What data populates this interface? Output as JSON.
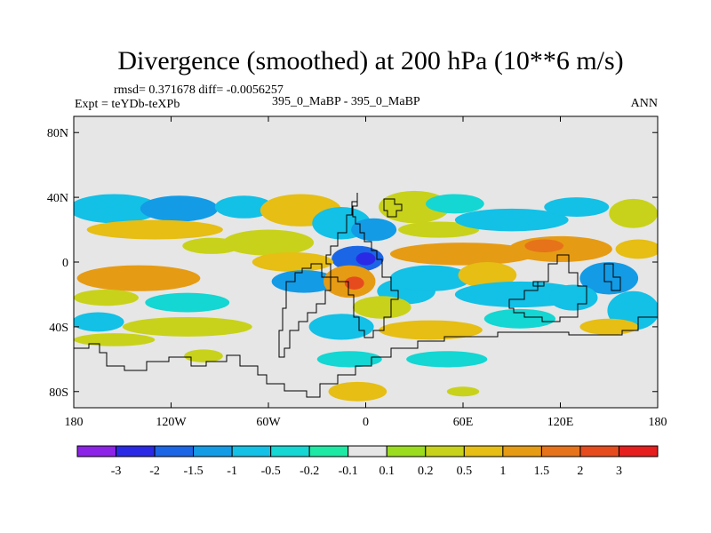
{
  "title": "Divergence (smoothed) at 200 hPa (10**6 m/s)",
  "stats": {
    "rmsd_label": "rmsd=",
    "rmsd": "0.371678",
    "diff_label": "diff=",
    "diff": "-0.0056257"
  },
  "experiment": "Expt = teYDb-teXPb",
  "experiments_compared": "395_0_MaBP - 395_0_MaBP",
  "season": "ANN",
  "chart_data": {
    "type": "heatmap",
    "title": "Divergence (smoothed) at 200 hPa (10**6 m/s)",
    "variable": "Divergence (smoothed)",
    "level": "200 hPa",
    "units": "10**6 m/s",
    "x_ticks": [
      "180",
      "120W",
      "60W",
      "0",
      "60E",
      "120E",
      "180"
    ],
    "x_values": [
      -180,
      -120,
      -60,
      0,
      60,
      120,
      180
    ],
    "y_ticks": [
      "80N",
      "40N",
      "0",
      "40S",
      "80S"
    ],
    "y_values": [
      80,
      40,
      0,
      -40,
      -80
    ],
    "xlim": [
      -180,
      180
    ],
    "ylim": [
      -90,
      90
    ],
    "colorbar": {
      "levels": [
        "-3",
        "-2",
        "-1.5",
        "-1",
        "-0.5",
        "-0.2",
        "-0.1",
        "0.1",
        "0.2",
        "0.5",
        "1",
        "1.5",
        "2",
        "3"
      ],
      "colors": [
        "#8c23e6",
        "#2a2ae6",
        "#1a66e6",
        "#139be6",
        "#13c0e6",
        "#14d6d3",
        "#1de9a5",
        "#e6e6e6",
        "#9bdc1e",
        "#c8d21a",
        "#e6be14",
        "#e69b14",
        "#e6731a",
        "#e64b1e",
        "#e61e1e"
      ]
    },
    "blobs": [
      {
        "lon": -155,
        "lat": 33,
        "rx": 28,
        "ry": 9,
        "level": "-0.5"
      },
      {
        "lon": -115,
        "lat": 33,
        "rx": 24,
        "ry": 8,
        "level": "-1"
      },
      {
        "lon": -75,
        "lat": 34,
        "rx": 18,
        "ry": 7,
        "level": "-0.5"
      },
      {
        "lon": -130,
        "lat": 20,
        "rx": 42,
        "ry": 6,
        "level": "0.5"
      },
      {
        "lon": -95,
        "lat": 10,
        "rx": 18,
        "ry": 5,
        "level": "0.2"
      },
      {
        "lon": -60,
        "lat": 12,
        "rx": 28,
        "ry": 8,
        "level": "0.2"
      },
      {
        "lon": -140,
        "lat": -10,
        "rx": 38,
        "ry": 8,
        "level": "1"
      },
      {
        "lon": -160,
        "lat": -22,
        "rx": 20,
        "ry": 5,
        "level": "0.2"
      },
      {
        "lon": -110,
        "lat": -25,
        "rx": 26,
        "ry": 6,
        "level": "-0.2"
      },
      {
        "lon": -165,
        "lat": -37,
        "rx": 16,
        "ry": 6,
        "level": "-0.5"
      },
      {
        "lon": -110,
        "lat": -40,
        "rx": 40,
        "ry": 6,
        "level": "0.2"
      },
      {
        "lon": -155,
        "lat": -48,
        "rx": 25,
        "ry": 4,
        "level": "0.2"
      },
      {
        "lon": -40,
        "lat": 32,
        "rx": 25,
        "ry": 10,
        "level": "0.5"
      },
      {
        "lon": -15,
        "lat": 24,
        "rx": 18,
        "ry": 10,
        "level": "-0.5"
      },
      {
        "lon": 5,
        "lat": 20,
        "rx": 14,
        "ry": 7,
        "level": "-1"
      },
      {
        "lon": -5,
        "lat": 2,
        "rx": 16,
        "ry": 8,
        "level": "-1.5"
      },
      {
        "lon": 0,
        "lat": 2,
        "rx": 6,
        "ry": 4,
        "level": "-2"
      },
      {
        "lon": -45,
        "lat": 0,
        "rx": 25,
        "ry": 6,
        "level": "0.5"
      },
      {
        "lon": -38,
        "lat": -12,
        "rx": 20,
        "ry": 7,
        "level": "-1"
      },
      {
        "lon": -10,
        "lat": -12,
        "rx": 16,
        "ry": 10,
        "level": "1"
      },
      {
        "lon": -7,
        "lat": -13,
        "rx": 6,
        "ry": 4,
        "level": "2"
      },
      {
        "lon": 25,
        "lat": -18,
        "rx": 18,
        "ry": 8,
        "level": "-0.5"
      },
      {
        "lon": 10,
        "lat": -28,
        "rx": 18,
        "ry": 7,
        "level": "0.2"
      },
      {
        "lon": -15,
        "lat": -40,
        "rx": 20,
        "ry": 8,
        "level": "-0.5"
      },
      {
        "lon": 30,
        "lat": 34,
        "rx": 22,
        "ry": 10,
        "level": "0.2"
      },
      {
        "lon": 55,
        "lat": 36,
        "rx": 18,
        "ry": 6,
        "level": "-0.2"
      },
      {
        "lon": 45,
        "lat": 20,
        "rx": 25,
        "ry": 5,
        "level": "0.2"
      },
      {
        "lon": 90,
        "lat": 26,
        "rx": 35,
        "ry": 7,
        "level": "-0.5"
      },
      {
        "lon": 130,
        "lat": 34,
        "rx": 20,
        "ry": 6,
        "level": "-0.5"
      },
      {
        "lon": 165,
        "lat": 30,
        "rx": 15,
        "ry": 9,
        "level": "0.2"
      },
      {
        "lon": 60,
        "lat": 5,
        "rx": 45,
        "ry": 7,
        "level": "1"
      },
      {
        "lon": 120,
        "lat": 8,
        "rx": 32,
        "ry": 8,
        "level": "1"
      },
      {
        "lon": 110,
        "lat": 10,
        "rx": 12,
        "ry": 4,
        "level": "1.5"
      },
      {
        "lon": 168,
        "lat": 8,
        "rx": 14,
        "ry": 6,
        "level": "0.5"
      },
      {
        "lon": 40,
        "lat": -10,
        "rx": 25,
        "ry": 8,
        "level": "-0.5"
      },
      {
        "lon": 75,
        "lat": -8,
        "rx": 18,
        "ry": 8,
        "level": "0.5"
      },
      {
        "lon": 95,
        "lat": -20,
        "rx": 40,
        "ry": 8,
        "level": "-0.5"
      },
      {
        "lon": 95,
        "lat": -35,
        "rx": 22,
        "ry": 6,
        "level": "-0.2"
      },
      {
        "lon": 150,
        "lat": -10,
        "rx": 18,
        "ry": 10,
        "level": "-1"
      },
      {
        "lon": 128,
        "lat": -22,
        "rx": 15,
        "ry": 8,
        "level": "-0.5"
      },
      {
        "lon": 165,
        "lat": -30,
        "rx": 16,
        "ry": 12,
        "level": "-0.5"
      },
      {
        "lon": 150,
        "lat": -40,
        "rx": 18,
        "ry": 5,
        "level": "0.5"
      },
      {
        "lon": 40,
        "lat": -42,
        "rx": 32,
        "ry": 6,
        "level": "0.5"
      },
      {
        "lon": 50,
        "lat": -60,
        "rx": 25,
        "ry": 5,
        "level": "-0.2"
      },
      {
        "lon": -10,
        "lat": -60,
        "rx": 20,
        "ry": 5,
        "level": "-0.2"
      },
      {
        "lon": -100,
        "lat": -58,
        "rx": 12,
        "ry": 4,
        "level": "0.2"
      },
      {
        "lon": -5,
        "lat": -80,
        "rx": 18,
        "ry": 6,
        "level": "0.5"
      },
      {
        "lon": 60,
        "lat": -80,
        "rx": 10,
        "ry": 3,
        "level": "0.2"
      }
    ]
  }
}
